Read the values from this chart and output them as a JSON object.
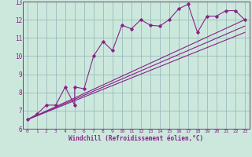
{
  "xlabel": "Windchill (Refroidissement éolien,°C)",
  "background_color": "#cce8dd",
  "grid_color": "#99bbbb",
  "line_color": "#882288",
  "spine_color": "#664466",
  "xlim": [
    -0.5,
    23.5
  ],
  "ylim": [
    6,
    13
  ],
  "xticks": [
    0,
    1,
    2,
    3,
    4,
    5,
    6,
    7,
    8,
    9,
    10,
    11,
    12,
    13,
    14,
    15,
    16,
    17,
    18,
    19,
    20,
    21,
    22,
    23
  ],
  "yticks": [
    6,
    7,
    8,
    9,
    10,
    11,
    12,
    13
  ],
  "scatter_x": [
    0,
    1,
    2,
    3,
    4,
    5,
    5,
    6,
    7,
    8,
    9,
    10,
    11,
    12,
    13,
    14,
    15,
    16,
    17,
    18,
    19,
    20,
    21,
    22,
    23
  ],
  "scatter_y": [
    6.5,
    6.8,
    7.3,
    7.3,
    8.3,
    7.3,
    8.3,
    8.2,
    10.0,
    10.8,
    10.3,
    11.7,
    11.5,
    12.0,
    11.7,
    11.65,
    12.0,
    12.6,
    12.85,
    11.3,
    12.2,
    12.2,
    12.5,
    12.5,
    12.0
  ],
  "line1_x": [
    0,
    23
  ],
  "line1_y": [
    6.5,
    12.0
  ],
  "line2_x": [
    0,
    23
  ],
  "line2_y": [
    6.5,
    11.3
  ],
  "line3_x": [
    0,
    23
  ],
  "line3_y": [
    6.5,
    11.65
  ]
}
